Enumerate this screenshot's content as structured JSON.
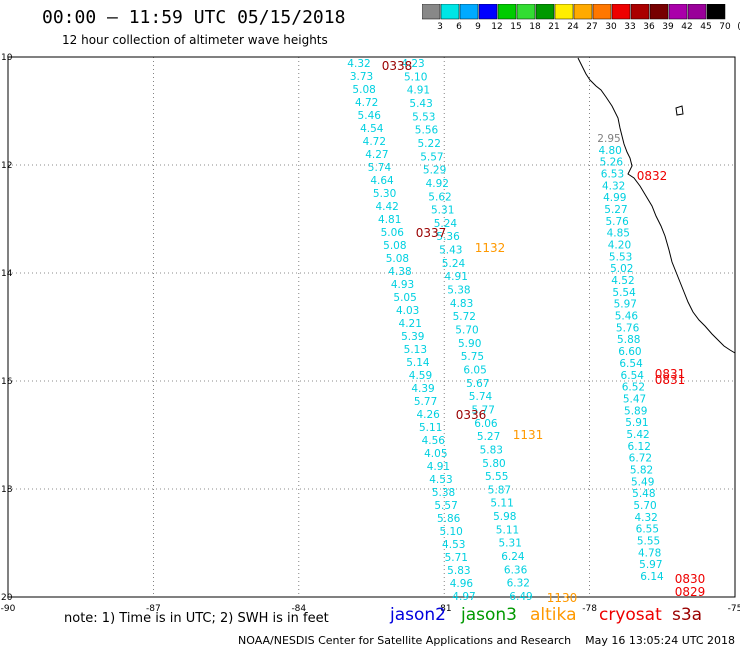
{
  "title": "00:00 – 11:59 UTC 05/15/2018",
  "subtitle": "12 hour collection of altimeter wave heights",
  "scale": {
    "colors": [
      "#888888",
      "#00e6e6",
      "#00aaff",
      "#0000ff",
      "#00cc00",
      "#33dd33",
      "#009900",
      "#ffee00",
      "#ffaa00",
      "#ff7700",
      "#ee0000",
      "#aa0000",
      "#770000",
      "#aa00aa",
      "#990099",
      "#000000"
    ],
    "labels": [
      "3",
      "6",
      "9",
      "12",
      "15",
      "18",
      "21",
      "24",
      "27",
      "30",
      "33",
      "36",
      "39",
      "42",
      "45",
      "70",
      "(ft)"
    ]
  },
  "axes": {
    "x_ticks": [
      "-90",
      "-87",
      "-84",
      "-81",
      "-78",
      "-75"
    ],
    "y_ticks": [
      "10",
      "12",
      "14",
      "16",
      "18",
      "20"
    ]
  },
  "wave_color": "#00d0e0",
  "gray_color": "#808080",
  "tracks": [
    {
      "name": "track-a",
      "values": [
        "4.32",
        "3.73",
        "5.08",
        "4.72",
        "5.46",
        "4.54",
        "4.72",
        "4.27",
        "5.74",
        "4.64",
        "5.30",
        "4.42",
        "4.81",
        "5.06",
        "5.08",
        "5.08",
        "4.38",
        "4.93",
        "5.05",
        "4.03",
        "4.21",
        "5.39",
        "5.13",
        "5.14",
        "4.59",
        "4.39",
        "5.77",
        "4.26",
        "5.11",
        "4.56",
        "4.05",
        "4.91",
        "4.53",
        "5.38",
        "5.57",
        "5.86",
        "5.10",
        "4.53",
        "5.71",
        "5.83",
        "4.96",
        "4.97"
      ]
    },
    {
      "name": "track-b",
      "values": [
        "4.23",
        "5.10",
        "4.91",
        "5.43",
        "5.53",
        "5.56",
        "5.22",
        "5.57",
        "5.29",
        "4.92",
        "5.62",
        "5.31",
        "5.24",
        "5.36",
        "5.43",
        "5.24",
        "4.91",
        "5.38",
        "4.83",
        "5.72",
        "5.70",
        "5.90",
        "5.75",
        "6.05",
        "5.67",
        "5.74",
        "5.77",
        "6.06",
        "5.27",
        "5.83",
        "5.80",
        "5.55",
        "5.87",
        "5.11",
        "5.98",
        "5.11",
        "5.31",
        "6.24",
        "6.36",
        "6.32",
        "6.49"
      ]
    },
    {
      "name": "track-c",
      "values": [
        "2.95",
        "4.80",
        "5.26",
        "6.53",
        "4.32",
        "4.99",
        "5.27",
        "5.76",
        "4.85",
        "4.20",
        "5.53",
        "5.02",
        "4.52",
        "5.54",
        "5.97",
        "5.46",
        "5.76",
        "5.88",
        "6.60",
        "6.54",
        "6.54",
        "6.52",
        "5.47",
        "5.89",
        "5.91",
        "5.42",
        "6.12",
        "6.72",
        "5.82",
        "5.49",
        "5.48",
        "5.70",
        "4.32",
        "6.55",
        "5.55",
        "4.78",
        "5.97",
        "6.14"
      ]
    }
  ],
  "pass_labels": [
    {
      "text": "0338",
      "color": "#990000"
    },
    {
      "text": "0337",
      "color": "#990000"
    },
    {
      "text": "0336",
      "color": "#990000"
    },
    {
      "text": "1132",
      "color": "#ff9900"
    },
    {
      "text": "1131",
      "color": "#ff9900"
    },
    {
      "text": "1130",
      "color": "#ff9900"
    },
    {
      "text": "0832",
      "color": "#ee0000"
    },
    {
      "text": "0831",
      "color": "#ee0000"
    },
    {
      "text": "0831",
      "color": "#ee0000"
    },
    {
      "text": "0830",
      "color": "#ee0000"
    },
    {
      "text": "0829",
      "color": "#ee0000"
    }
  ],
  "note": "note: 1) Time is in UTC; 2) SWH is in feet",
  "legend": [
    {
      "text": "jason2",
      "color": "#0000dd"
    },
    {
      "text": "jason3",
      "color": "#009900"
    },
    {
      "text": "altika",
      "color": "#ff9900"
    },
    {
      "text": "cryosat",
      "color": "#ee0000"
    },
    {
      "text": "s3a",
      "color": "#990000"
    }
  ],
  "footer": "NOAA/NESDIS Center for Satellite Applications and Research    May 16 13:05:24 UTC 2018"
}
